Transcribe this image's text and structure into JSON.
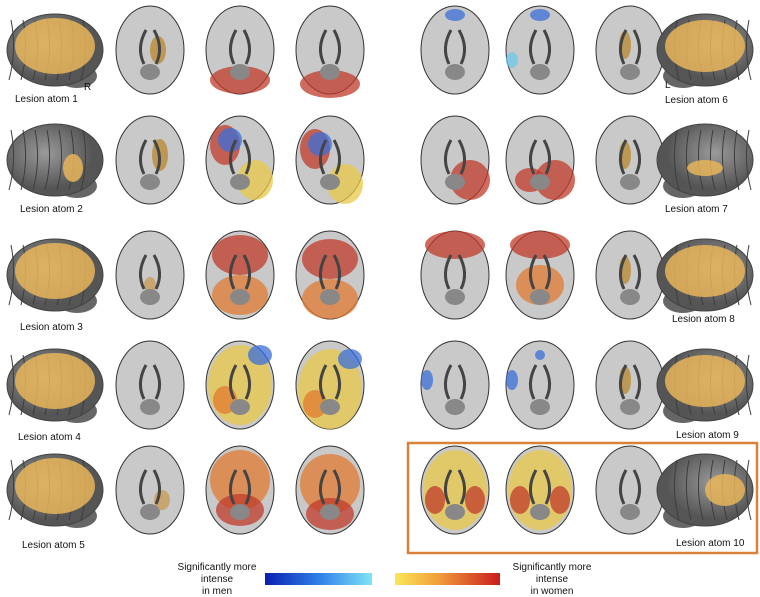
{
  "hemisphere_labels": {
    "right": "R",
    "left": "L"
  },
  "atoms": [
    "Lesion atom 1",
    "Lesion atom 2",
    "Lesion atom 3",
    "Lesion atom 4",
    "Lesion atom 5",
    "Lesion atom 6",
    "Lesion atom 7",
    "Lesion atom 8",
    "Lesion atom 9",
    "Lesion atom 10"
  ],
  "legend": {
    "men": [
      "Significantly more",
      "intense",
      "in men"
    ],
    "women": [
      "Significantly more",
      "intense",
      "in women"
    ]
  }
}
